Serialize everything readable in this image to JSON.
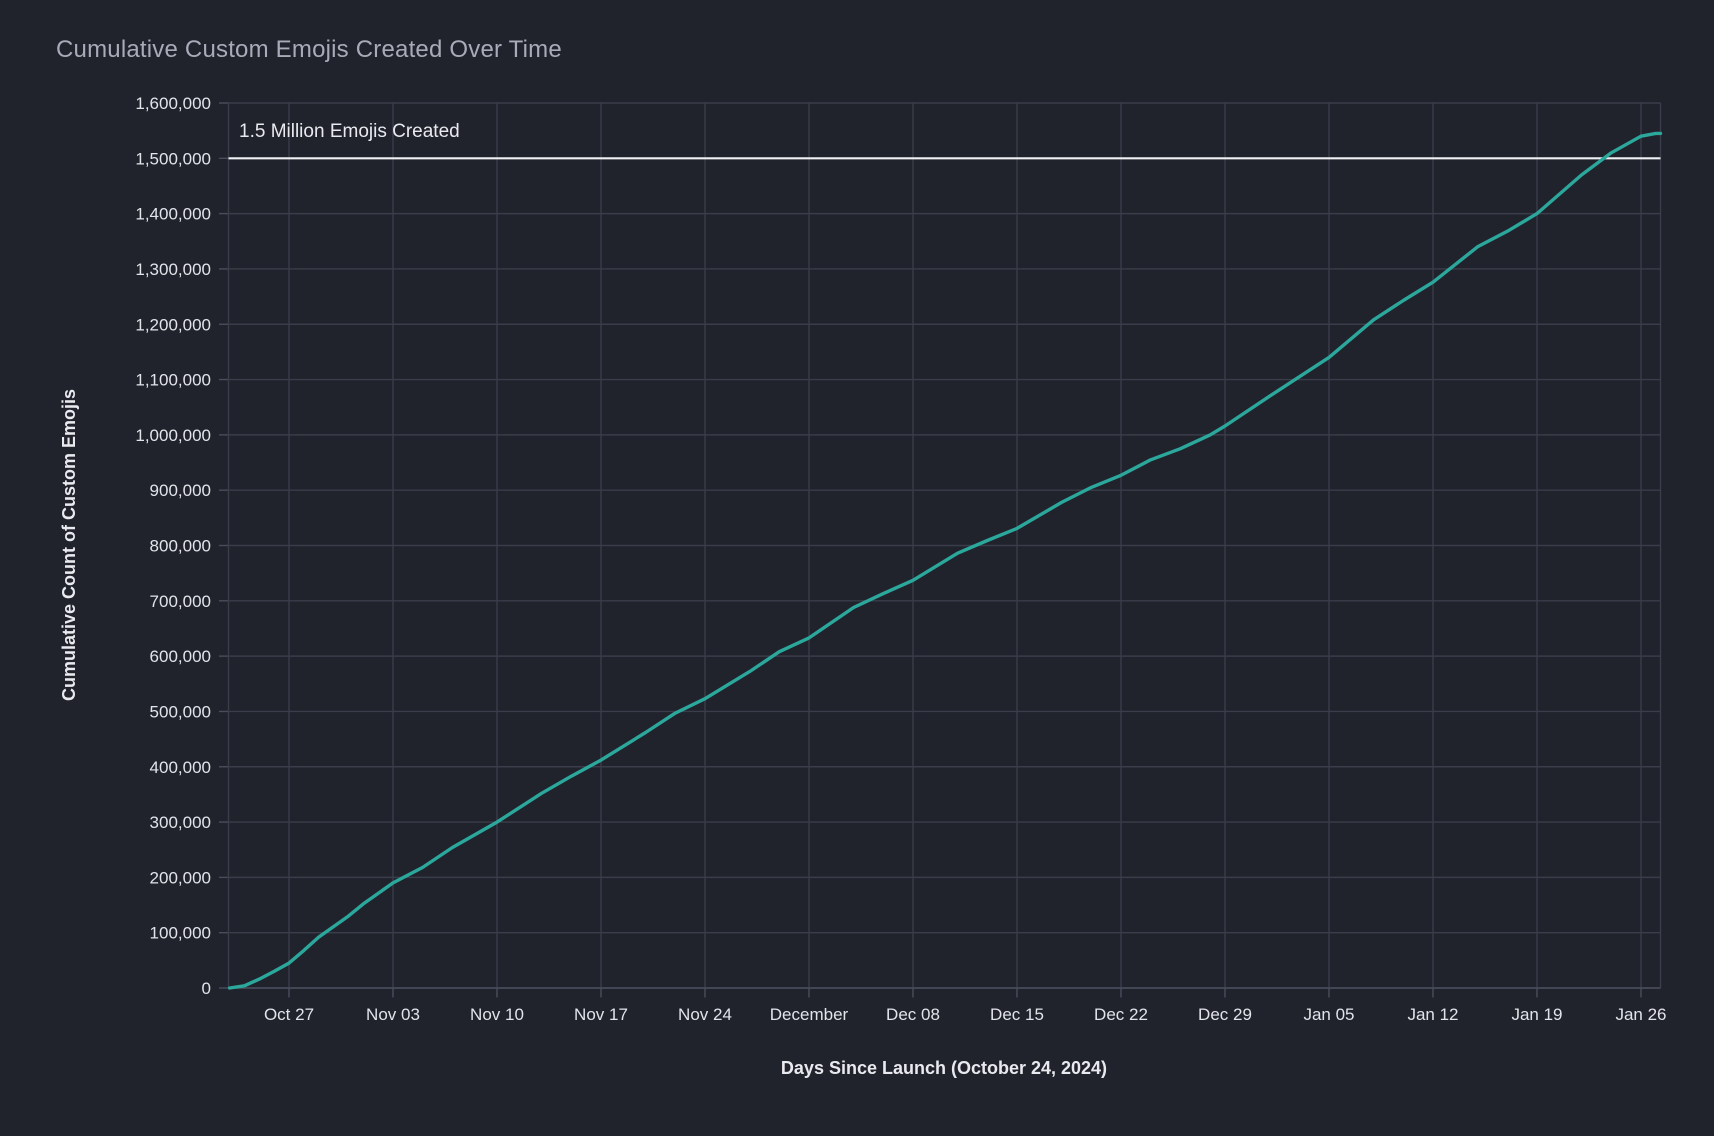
{
  "colors": {
    "background": "#20222c",
    "gridline": "#3a3d4a",
    "axis_line": "#4a4e5c",
    "tick_label": "#e2e4ea",
    "title": "#a8acb8",
    "axis_title": "#e9eaef",
    "line": "#2ba79b",
    "reference_line": "#eef0f4"
  },
  "chart_data": {
    "type": "line",
    "title": "Cumulative Custom Emojis Created Over Time",
    "xlabel": "Days Since Launch (October 24, 2024)",
    "ylabel": "Cumulative Count of Custom Emojis",
    "grid": true,
    "legend": "none",
    "ylim": [
      0,
      1600000
    ],
    "y_tick_step": 100000,
    "reference_line": {
      "value": 1500000,
      "label": "1.5 Million Emojis Created"
    },
    "y_ticks": [
      {
        "value": 0,
        "label": "0"
      },
      {
        "value": 100000,
        "label": "100,000"
      },
      {
        "value": 200000,
        "label": "200,000"
      },
      {
        "value": 300000,
        "label": "300,000"
      },
      {
        "value": 400000,
        "label": "400,000"
      },
      {
        "value": 500000,
        "label": "500,000"
      },
      {
        "value": 600000,
        "label": "600,000"
      },
      {
        "value": 700000,
        "label": "700,000"
      },
      {
        "value": 800000,
        "label": "800,000"
      },
      {
        "value": 900000,
        "label": "900,000"
      },
      {
        "value": 1000000,
        "label": "1,000,000"
      },
      {
        "value": 1100000,
        "label": "1,100,000"
      },
      {
        "value": 1200000,
        "label": "1,200,000"
      },
      {
        "value": 1300000,
        "label": "1,300,000"
      },
      {
        "value": 1400000,
        "label": "1,400,000"
      },
      {
        "value": 1500000,
        "label": "1,500,000"
      },
      {
        "value": 1600000,
        "label": "1,600,000"
      }
    ],
    "x_ticks": [
      {
        "day": 3,
        "label": "Oct 27"
      },
      {
        "day": 10,
        "label": "Nov 03"
      },
      {
        "day": 17,
        "label": "Nov 10"
      },
      {
        "day": 24,
        "label": "Nov 17"
      },
      {
        "day": 31,
        "label": "Nov 24"
      },
      {
        "day": 38,
        "label": "December"
      },
      {
        "day": 45,
        "label": "Dec 08"
      },
      {
        "day": 52,
        "label": "Dec 15"
      },
      {
        "day": 59,
        "label": "Dec 22"
      },
      {
        "day": 66,
        "label": "Dec 29"
      },
      {
        "day": 73,
        "label": "Jan 05"
      },
      {
        "day": 80,
        "label": "Jan 12"
      },
      {
        "day": 87,
        "label": "Jan 19"
      },
      {
        "day": 94,
        "label": "Jan 26"
      }
    ],
    "series": [
      {
        "name": "Cumulative Custom Emojis",
        "points": [
          {
            "date": "Oct 23",
            "day": -1,
            "value": 0
          },
          {
            "date": "Oct 24",
            "day": 0,
            "value": 4000
          },
          {
            "date": "Oct 25",
            "day": 1,
            "value": 16000
          },
          {
            "date": "Oct 26",
            "day": 2,
            "value": 30000
          },
          {
            "date": "Oct 27",
            "day": 3,
            "value": 45000
          },
          {
            "date": "Oct 28",
            "day": 4,
            "value": 68000
          },
          {
            "date": "Oct 29",
            "day": 5,
            "value": 92000
          },
          {
            "date": "Oct 31",
            "day": 7,
            "value": 130000
          },
          {
            "date": "Nov 01",
            "day": 8,
            "value": 152000
          },
          {
            "date": "Nov 03",
            "day": 10,
            "value": 190000
          },
          {
            "date": "Nov 05",
            "day": 12,
            "value": 218000
          },
          {
            "date": "Nov 07",
            "day": 14,
            "value": 254000
          },
          {
            "date": "Nov 10",
            "day": 17,
            "value": 300000
          },
          {
            "date": "Nov 13",
            "day": 20,
            "value": 352000
          },
          {
            "date": "Nov 15",
            "day": 22,
            "value": 383000
          },
          {
            "date": "Nov 17",
            "day": 24,
            "value": 412000
          },
          {
            "date": "Nov 20",
            "day": 27,
            "value": 462000
          },
          {
            "date": "Nov 22",
            "day": 29,
            "value": 497000
          },
          {
            "date": "Nov 24",
            "day": 31,
            "value": 523000
          },
          {
            "date": "Nov 27",
            "day": 34,
            "value": 572000
          },
          {
            "date": "Nov 29",
            "day": 36,
            "value": 608000
          },
          {
            "date": "Dec 01",
            "day": 38,
            "value": 633000
          },
          {
            "date": "Dec 04",
            "day": 41,
            "value": 688000
          },
          {
            "date": "Dec 06",
            "day": 43,
            "value": 713000
          },
          {
            "date": "Dec 08",
            "day": 45,
            "value": 737000
          },
          {
            "date": "Dec 11",
            "day": 48,
            "value": 786000
          },
          {
            "date": "Dec 13",
            "day": 50,
            "value": 809000
          },
          {
            "date": "Dec 15",
            "day": 52,
            "value": 831000
          },
          {
            "date": "Dec 18",
            "day": 55,
            "value": 878000
          },
          {
            "date": "Dec 20",
            "day": 57,
            "value": 905000
          },
          {
            "date": "Dec 22",
            "day": 59,
            "value": 927000
          },
          {
            "date": "Dec 24",
            "day": 61,
            "value": 955000
          },
          {
            "date": "Dec 26",
            "day": 63,
            "value": 975000
          },
          {
            "date": "Dec 28",
            "day": 65,
            "value": 1000000
          },
          {
            "date": "Dec 29",
            "day": 66,
            "value": 1016000
          },
          {
            "date": "Jan 01",
            "day": 69,
            "value": 1070000
          },
          {
            "date": "Jan 03",
            "day": 71,
            "value": 1105000
          },
          {
            "date": "Jan 05",
            "day": 73,
            "value": 1140000
          },
          {
            "date": "Jan 08",
            "day": 76,
            "value": 1208000
          },
          {
            "date": "Jan 10",
            "day": 78,
            "value": 1243000
          },
          {
            "date": "Jan 12",
            "day": 80,
            "value": 1276000
          },
          {
            "date": "Jan 15",
            "day": 83,
            "value": 1340000
          },
          {
            "date": "Jan 17",
            "day": 85,
            "value": 1368000
          },
          {
            "date": "Jan 19",
            "day": 87,
            "value": 1400000
          },
          {
            "date": "Jan 22",
            "day": 90,
            "value": 1470000
          },
          {
            "date": "Jan 24",
            "day": 92,
            "value": 1510000
          },
          {
            "date": "Jan 26",
            "day": 94,
            "value": 1540000
          },
          {
            "date": "Jan 27",
            "day": 95,
            "value": 1545000
          }
        ]
      }
    ]
  }
}
